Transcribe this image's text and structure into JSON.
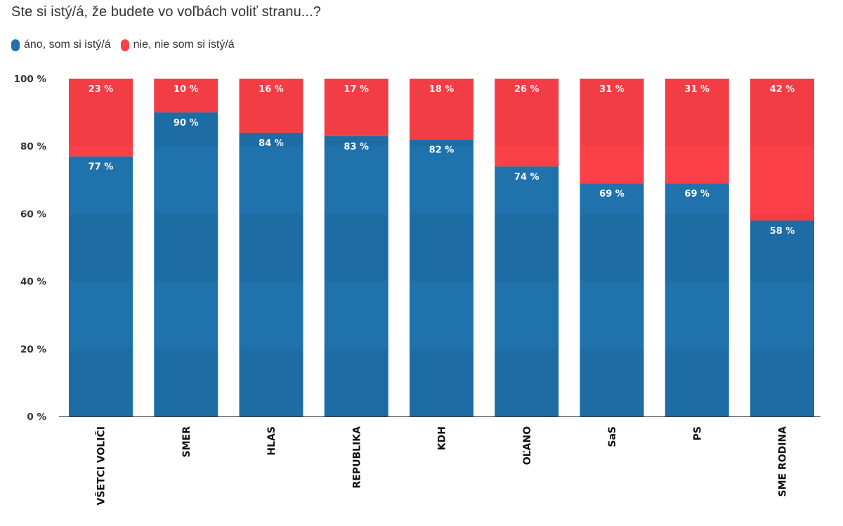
{
  "chart_data": {
    "type": "bar",
    "stacked": true,
    "title": "Ste si istý/á, že budete vo voľbách voliť stranu...?",
    "categories": [
      "VŠETCI VOLIČI",
      "SMER",
      "HLAS",
      "REPUBLIKA",
      "KDH",
      "OĽANO",
      "SaS",
      "PS",
      "SME RODINA"
    ],
    "series": [
      {
        "name": "áno, som si istý/á",
        "color": "#1f72ab",
        "values": [
          77,
          90,
          84,
          83,
          82,
          74,
          69,
          69,
          58
        ]
      },
      {
        "name": "nie, nie som si istý/á",
        "color": "#fc4048",
        "values": [
          23,
          10,
          16,
          17,
          18,
          26,
          31,
          31,
          42
        ]
      }
    ],
    "ylim": [
      0,
      100
    ],
    "yticks": [
      0,
      20,
      40,
      60,
      80,
      100
    ],
    "tick_suffix": " %",
    "label_suffix": " %",
    "legend_position": "top-left",
    "grid": false
  }
}
